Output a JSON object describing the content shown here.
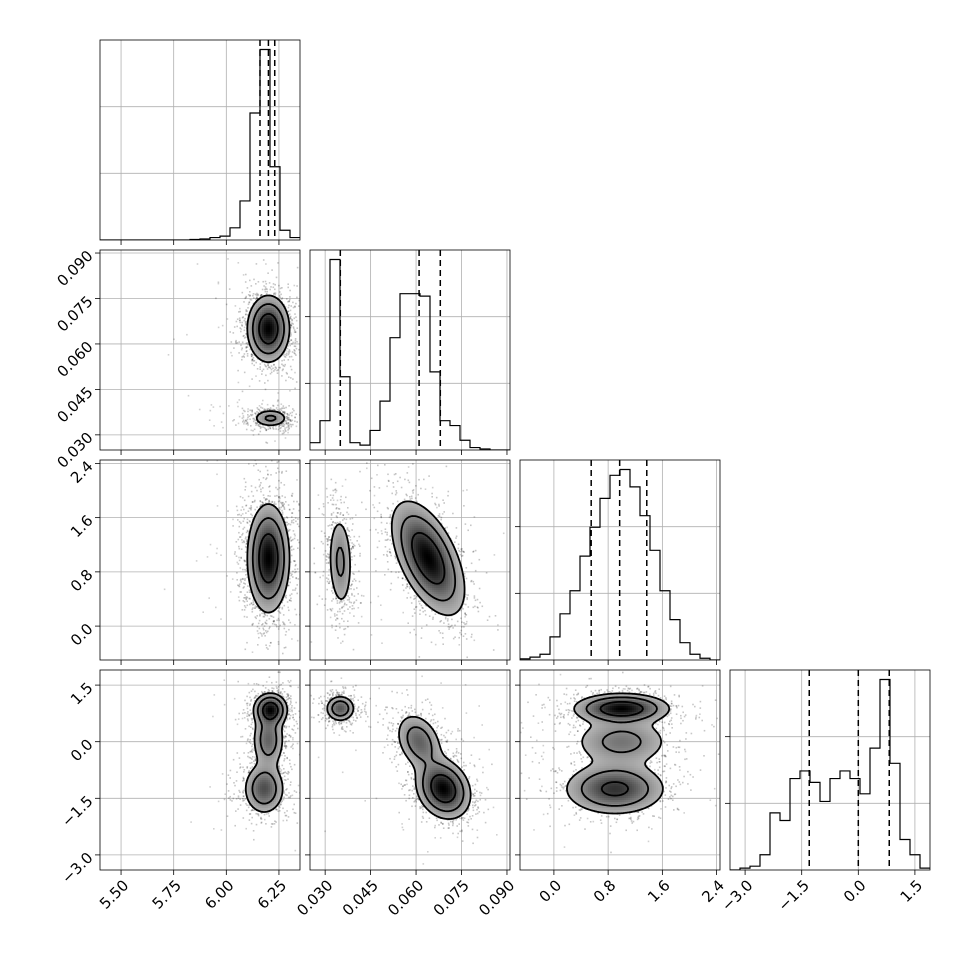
{
  "chart_data": {
    "type": "corner",
    "grid": true,
    "parameters": [
      {
        "ticks": [
          5.5,
          5.75,
          6.0,
          6.25
        ],
        "tick_labels": [
          "5.50",
          "5.75",
          "6.00",
          "6.25"
        ],
        "range": [
          5.4,
          6.35
        ]
      },
      {
        "ticks": [
          0.03,
          0.045,
          0.06,
          0.075,
          0.09
        ],
        "tick_labels": [
          "0.030",
          "0.045",
          "0.060",
          "0.075",
          "0.090"
        ],
        "range": [
          0.025,
          0.091
        ]
      },
      {
        "ticks": [
          0.0,
          0.8,
          1.6,
          2.4
        ],
        "tick_labels": [
          "0.0",
          "0.8",
          "1.6",
          "2.4"
        ],
        "range": [
          -0.5,
          2.45
        ]
      },
      {
        "ticks": [
          -3.0,
          -1.5,
          0.0,
          1.5
        ],
        "tick_labels": [
          "−3.0",
          "−1.5",
          "0.0",
          "1.5"
        ],
        "range": [
          -3.4,
          1.9
        ]
      }
    ],
    "quantiles": [
      [
        6.16,
        6.2,
        6.23
      ],
      [
        0.035,
        0.061,
        0.068
      ],
      [
        0.55,
        0.97,
        1.37
      ],
      [
        -1.3,
        0.0,
        0.82
      ]
    ],
    "histograms": [
      {
        "edges": [
          5.4,
          5.4475,
          5.495,
          5.5425,
          5.59,
          5.6375,
          5.685,
          5.7325,
          5.78,
          5.8275,
          5.875,
          5.9225,
          5.97,
          6.0175,
          6.065,
          6.1125,
          6.16,
          6.2075,
          6.255,
          6.3025,
          6.35
        ],
        "counts": [
          0,
          0,
          0,
          0,
          0,
          0,
          0,
          0,
          0,
          1,
          2,
          5,
          8,
          25,
          80,
          260,
          390,
          150,
          20,
          5
        ]
      },
      {
        "edges": [
          0.025,
          0.0283,
          0.0316,
          0.0349,
          0.0382,
          0.0415,
          0.0448,
          0.0481,
          0.0514,
          0.0547,
          0.058,
          0.0613,
          0.0646,
          0.0679,
          0.0712,
          0.0745,
          0.0778,
          0.0811,
          0.0844,
          0.0877,
          0.091
        ],
        "counts": [
          15,
          60,
          390,
          150,
          15,
          10,
          40,
          100,
          230,
          320,
          320,
          315,
          160,
          60,
          50,
          20,
          5,
          2,
          0,
          0
        ]
      },
      {
        "edges": [
          -0.5,
          -0.3525,
          -0.205,
          -0.0575,
          0.09,
          0.2375,
          0.385,
          0.5325,
          0.68,
          0.8275,
          0.975,
          1.1225,
          1.27,
          1.4175,
          1.565,
          1.7125,
          1.86,
          2.0075,
          2.155,
          2.3025,
          2.45
        ],
        "counts": [
          2,
          5,
          10,
          40,
          80,
          120,
          180,
          230,
          280,
          320,
          330,
          300,
          250,
          190,
          120,
          70,
          30,
          10,
          3,
          0
        ]
      },
      {
        "edges": [
          -3.4,
          -3.135,
          -2.87,
          -2.605,
          -2.34,
          -2.075,
          -1.81,
          -1.545,
          -1.28,
          -1.015,
          -0.75,
          -0.485,
          -0.22,
          0.045,
          0.31,
          0.575,
          0.84,
          1.105,
          1.37,
          1.635,
          1.9
        ],
        "counts": [
          0,
          5,
          10,
          40,
          150,
          130,
          240,
          260,
          230,
          180,
          240,
          260,
          240,
          200,
          320,
          500,
          280,
          80,
          40,
          5
        ]
      }
    ],
    "joint_clusters": [
      {
        "pair": [
          1,
          0
        ],
        "clusters": [
          {
            "center": [
              6.2,
              0.065
            ],
            "sd": [
              0.05,
              0.0055
            ],
            "rho": 0.0,
            "weight": 0.72
          },
          {
            "center": [
              6.21,
              0.0355
            ],
            "sd": [
              0.045,
              0.0016
            ],
            "rho": 0.0,
            "weight": 0.28
          }
        ]
      },
      {
        "pair": [
          2,
          0
        ],
        "clusters": [
          {
            "center": [
              6.2,
              1.0
            ],
            "sd": [
              0.05,
              0.4
            ],
            "rho": 0.0,
            "weight": 1.0
          }
        ]
      },
      {
        "pair": [
          2,
          1
        ],
        "clusters": [
          {
            "center": [
              0.035,
              0.95
            ],
            "sd": [
              0.0022,
              0.38
            ],
            "rho": -0.1,
            "weight": 0.28
          },
          {
            "center": [
              0.064,
              1.0
            ],
            "sd": [
              0.006,
              0.42
            ],
            "rho": -0.55,
            "weight": 0.72
          }
        ]
      },
      {
        "pair": [
          3,
          0
        ],
        "clusters": [
          {
            "center": [
              6.21,
              0.85
            ],
            "sd": [
              0.04,
              0.22
            ],
            "rho": 0.0,
            "weight": 0.45
          },
          {
            "center": [
              6.2,
              0.05
            ],
            "sd": [
              0.04,
              0.4
            ],
            "rho": 0.0,
            "weight": 0.25
          },
          {
            "center": [
              6.18,
              -1.25
            ],
            "sd": [
              0.05,
              0.35
            ],
            "rho": 0.0,
            "weight": 0.3
          }
        ]
      },
      {
        "pair": [
          3,
          1
        ],
        "clusters": [
          {
            "center": [
              0.035,
              0.88
            ],
            "sd": [
              0.0025,
              0.18
            ],
            "rho": 0.0,
            "weight": 0.28
          },
          {
            "center": [
              0.061,
              0.0
            ],
            "sd": [
              0.004,
              0.4
            ],
            "rho": -0.3,
            "weight": 0.25
          },
          {
            "center": [
              0.069,
              -1.25
            ],
            "sd": [
              0.0045,
              0.4
            ],
            "rho": -0.2,
            "weight": 0.47
          }
        ]
      },
      {
        "pair": [
          3,
          2
        ],
        "clusters": [
          {
            "center": [
              1.0,
              0.88
            ],
            "sd": [
              0.35,
              0.2
            ],
            "rho": 0.0,
            "weight": 0.45
          },
          {
            "center": [
              1.0,
              0.0
            ],
            "sd": [
              0.38,
              0.35
            ],
            "rho": 0.0,
            "weight": 0.2
          },
          {
            "center": [
              0.9,
              -1.25
            ],
            "sd": [
              0.38,
              0.35
            ],
            "rho": 0.0,
            "weight": 0.35
          }
        ]
      }
    ],
    "contour_levels": [
      0.4,
      1.1,
      2.0
    ]
  }
}
